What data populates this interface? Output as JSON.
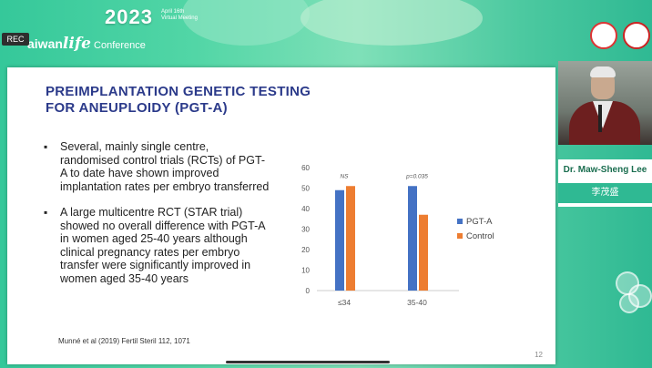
{
  "header": {
    "rec_label": "REC",
    "year": "2023",
    "date_tag_line1": "April 16th",
    "date_tag_line2": "Virtual Meeting",
    "conf_prefix": "aiwan",
    "conf_life": "life",
    "conf_suffix": " Conference"
  },
  "slide": {
    "title_line1": "PREIMPLANTATION GENETIC TESTING",
    "title_line2": "FOR ANEUPLOIDY (PGT-A)",
    "bullets": [
      "Several, mainly single centre, randomised control trials (RCTs) of PGT-A to date have shown improved implantation rates per embryo transferred",
      "A large multicentre RCT (STAR trial) showed no overall difference with PGT-A in women aged 25-40 years although clinical pregnancy rates per embryo transfer were significantly improved in women aged 35-40 years"
    ],
    "citation": "Munné et al (2019) Fertil Steril 112, 1071",
    "page_number": "12"
  },
  "chart_data": {
    "type": "bar",
    "categories": [
      "≤34",
      "35-40"
    ],
    "series": [
      {
        "name": "PGT-A",
        "values": [
          49,
          51
        ]
      },
      {
        "name": "Control",
        "values": [
          51,
          37
        ]
      }
    ],
    "annotations": [
      "NS",
      "p=0.035"
    ],
    "yticks": [
      0,
      10,
      20,
      30,
      40,
      50,
      60
    ],
    "ylim": [
      0,
      60
    ],
    "legend_position": "right",
    "colors": {
      "PGT-A": "#4472c4",
      "Control": "#ed7d31"
    }
  },
  "speaker": {
    "name_en": "Dr. Maw-Sheng Lee",
    "name_zh": "李茂盛"
  },
  "colors": {
    "accent": "#2fb993",
    "title_blue": "#2b3a8a"
  }
}
